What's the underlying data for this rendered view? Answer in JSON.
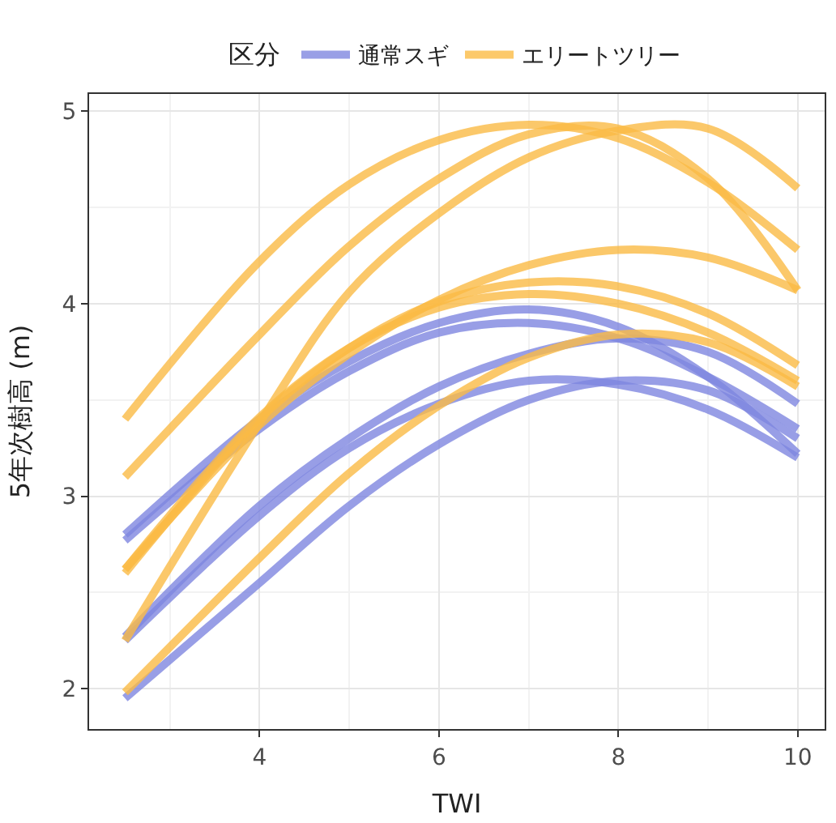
{
  "chart_data": {
    "type": "line",
    "xlabel": "TWI",
    "ylabel": "5年次樹高 (m)",
    "legend_title": "区分",
    "x": [
      2.5,
      4,
      5,
      6,
      7,
      8,
      9,
      10
    ],
    "series": [
      {
        "name": "通常スギ",
        "color": "#7f87e0",
        "values": [
          2.8,
          3.4,
          3.7,
          3.9,
          3.97,
          3.88,
          3.62,
          3.22
        ]
      },
      {
        "name": "エリートツリー",
        "color": "#fbbb45",
        "values": [
          3.4,
          4.22,
          4.62,
          4.85,
          4.93,
          4.86,
          4.63,
          4.28
        ]
      },
      {
        "color": "#7f87e0",
        "values": [
          2.77,
          3.35,
          3.65,
          3.85,
          3.9,
          3.82,
          3.62,
          3.35
        ]
      },
      {
        "color": "#7f87e0",
        "values": [
          2.27,
          2.95,
          3.3,
          3.57,
          3.74,
          3.82,
          3.75,
          3.48
        ]
      },
      {
        "color": "#7f87e0",
        "values": [
          2.25,
          2.9,
          3.25,
          3.48,
          3.6,
          3.58,
          3.45,
          3.2
        ]
      },
      {
        "color": "#7f87e0",
        "values": [
          1.95,
          2.55,
          2.95,
          3.27,
          3.5,
          3.6,
          3.55,
          3.3
        ]
      },
      {
        "color": "#fbbb45",
        "values": [
          3.1,
          3.84,
          4.3,
          4.65,
          4.88,
          4.91,
          4.65,
          4.07
        ]
      },
      {
        "color": "#fbbb45",
        "values": [
          2.25,
          3.38,
          4.06,
          4.47,
          4.76,
          4.9,
          4.91,
          4.6
        ]
      },
      {
        "color": "#fbbb45",
        "values": [
          2.62,
          3.37,
          3.74,
          4.02,
          4.2,
          4.28,
          4.24,
          4.07
        ]
      },
      {
        "color": "#fbbb45",
        "values": [
          2.6,
          3.4,
          3.77,
          4.01,
          4.11,
          4.09,
          3.95,
          3.68
        ]
      },
      {
        "color": "#fbbb45",
        "values": [
          2.62,
          3.41,
          3.77,
          3.98,
          4.05,
          4.0,
          3.85,
          3.6
        ]
      },
      {
        "color": "#fbbb45",
        "values": [
          1.98,
          2.68,
          3.12,
          3.47,
          3.72,
          3.84,
          3.8,
          3.57
        ]
      }
    ],
    "xlim": [
      2.1,
      10.3
    ],
    "ylim": [
      1.79,
      5.09
    ],
    "xticks": [
      4,
      6,
      8,
      10
    ],
    "yticks": [
      2,
      3,
      4,
      5
    ],
    "grid": true,
    "legend": "top",
    "marker": "none",
    "line_style": "solid"
  }
}
